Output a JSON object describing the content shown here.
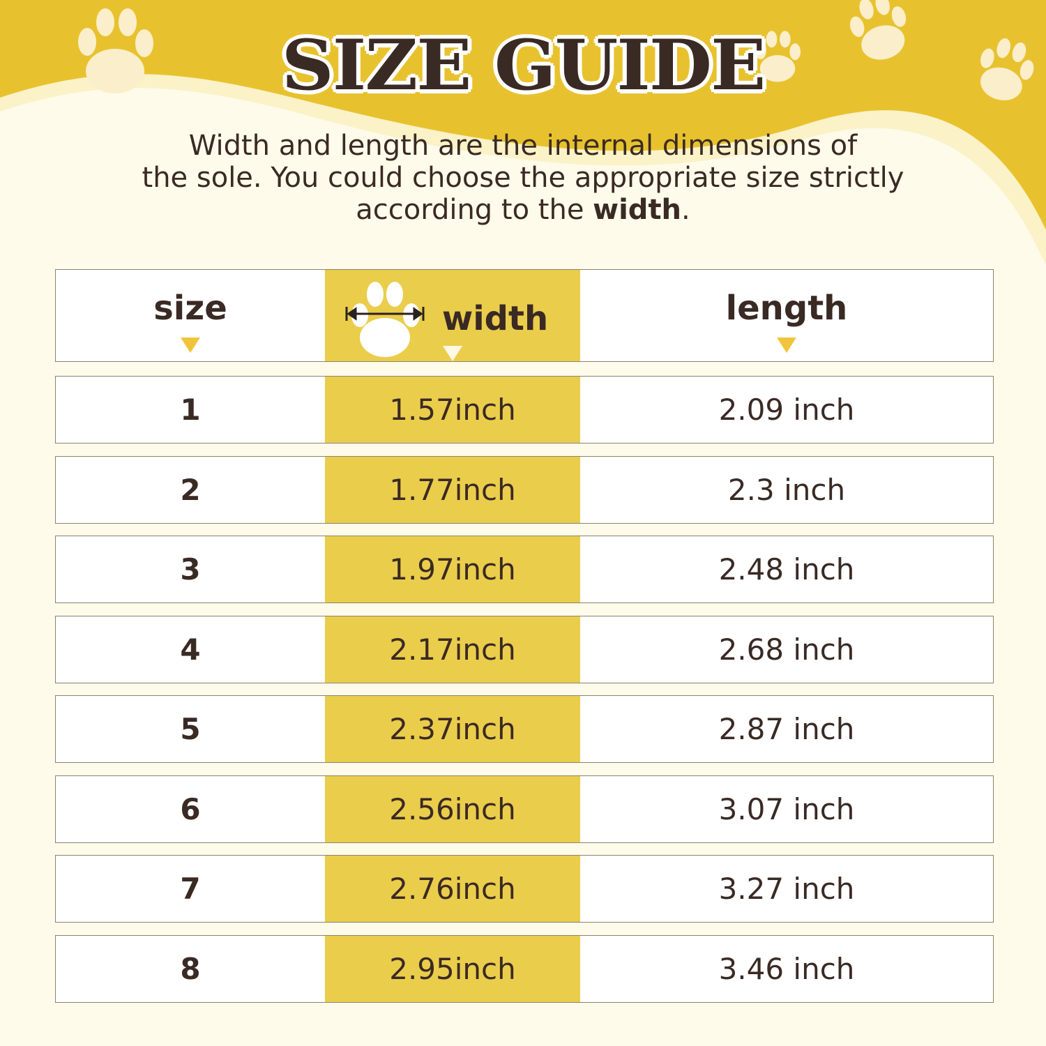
{
  "title": "SIZE GUIDE",
  "description": {
    "line1": "Width and length are the internal dimensions of",
    "line2": "the sole. You could choose the appropriate size strictly",
    "line3_prefix": "according to the ",
    "line3_bold": "width",
    "line3_suffix": "."
  },
  "colors": {
    "top_yellow": "#e8c22e",
    "width_column": "#ebcd4c",
    "text": "#3a2a24",
    "arrow": "#f0c53a",
    "cream": "#fffbea"
  },
  "table": {
    "headers": {
      "size": "size",
      "width": "width",
      "length": "length"
    },
    "width_icon": "paw-with-width-arrow-icon",
    "rows": [
      {
        "size": "1",
        "width": "1.57inch",
        "length": "2.09 inch"
      },
      {
        "size": "2",
        "width": "1.77inch",
        "length": "2.3 inch"
      },
      {
        "size": "3",
        "width": "1.97inch",
        "length": "2.48 inch"
      },
      {
        "size": "4",
        "width": "2.17inch",
        "length": "2.68 inch"
      },
      {
        "size": "5",
        "width": "2.37inch",
        "length": "2.87 inch"
      },
      {
        "size": "6",
        "width": "2.56inch",
        "length": "3.07 inch"
      },
      {
        "size": "7",
        "width": "2.76inch",
        "length": "3.27 inch"
      },
      {
        "size": "8",
        "width": "2.95inch",
        "length": "3.46 inch"
      }
    ]
  }
}
